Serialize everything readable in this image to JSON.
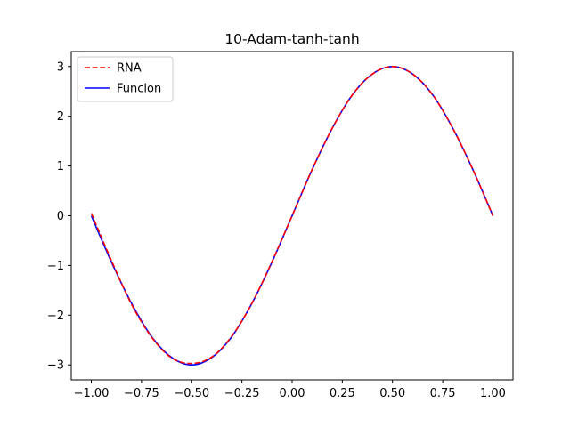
{
  "chart_data": {
    "type": "line",
    "title": "10-Adam-tanh-tanh",
    "xlabel": "",
    "ylabel": "",
    "xlim": [
      -1.1,
      1.1
    ],
    "ylim": [
      -3.3,
      3.3
    ],
    "grid": false,
    "legend_position": "upper-left",
    "x_ticks": [
      -1.0,
      -0.75,
      -0.5,
      -0.25,
      0.0,
      0.25,
      0.5,
      0.75,
      1.0
    ],
    "x_tick_labels": [
      "−1.00",
      "−0.75",
      "−0.50",
      "−0.25",
      "0.00",
      "0.25",
      "0.50",
      "0.75",
      "1.00"
    ],
    "y_ticks": [
      -3,
      -2,
      -1,
      0,
      1,
      2,
      3
    ],
    "y_tick_labels": [
      "−3",
      "−2",
      "−1",
      "0",
      "1",
      "2",
      "3"
    ],
    "x": [
      -1.0,
      -0.9,
      -0.8,
      -0.7,
      -0.6,
      -0.5,
      -0.4,
      -0.3,
      -0.2,
      -0.1,
      0.0,
      0.1,
      0.2,
      0.3,
      0.4,
      0.5,
      0.6,
      0.7,
      0.8,
      0.9,
      1.0
    ],
    "series": [
      {
        "name": "RNA",
        "style": "dashed",
        "color": "#ff0000",
        "values": [
          0.05,
          -0.9,
          -1.78,
          -2.44,
          -2.86,
          -2.97,
          -2.84,
          -2.42,
          -1.76,
          -0.92,
          0.0,
          0.93,
          1.76,
          2.43,
          2.85,
          3.0,
          2.85,
          2.43,
          1.76,
          0.93,
          0.0
        ]
      },
      {
        "name": "Funcion",
        "style": "solid",
        "color": "#0000ff",
        "values": [
          0.0,
          -0.93,
          -1.76,
          -2.43,
          -2.85,
          -3.0,
          -2.85,
          -2.43,
          -1.76,
          -0.93,
          0.0,
          0.93,
          1.76,
          2.43,
          2.85,
          3.0,
          2.85,
          2.43,
          1.76,
          0.93,
          0.0
        ]
      }
    ]
  }
}
